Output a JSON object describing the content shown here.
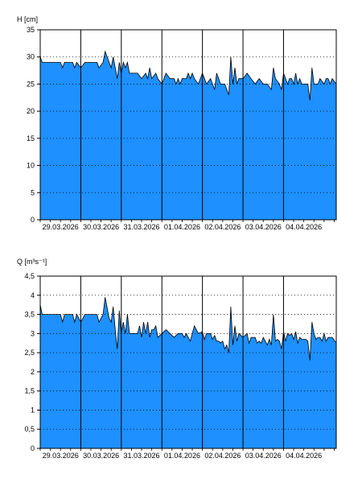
{
  "chart_data": [
    {
      "type": "area",
      "ylabel": "H [cm]",
      "ylim": [
        0,
        35
      ],
      "yticks": [
        "0",
        "5",
        "10",
        "15",
        "20",
        "25",
        "30",
        "35"
      ],
      "xlim_days": [
        0,
        7.3
      ],
      "x_tick_labels": [
        "29.03.2026",
        "30.03.2026",
        "31.03.2026",
        "01.04.2026",
        "02.04.2026",
        "03.04.2026",
        "04.04.2026"
      ],
      "grid": true,
      "fill_color": "#1e90ff",
      "points": [
        [
          0,
          30
        ],
        [
          0.05,
          29
        ],
        [
          0.3,
          29
        ],
        [
          0.5,
          29
        ],
        [
          0.55,
          28
        ],
        [
          0.6,
          29
        ],
        [
          0.8,
          29
        ],
        [
          0.85,
          28
        ],
        [
          0.9,
          29
        ],
        [
          1.0,
          28
        ],
        [
          1.1,
          29
        ],
        [
          1.3,
          29
        ],
        [
          1.4,
          29
        ],
        [
          1.45,
          28
        ],
        [
          1.55,
          29
        ],
        [
          1.6,
          31
        ],
        [
          1.7,
          29
        ],
        [
          1.75,
          28
        ],
        [
          1.8,
          30
        ],
        [
          1.85,
          28
        ],
        [
          1.9,
          26
        ],
        [
          1.95,
          29
        ],
        [
          2.0,
          27
        ],
        [
          2.05,
          29
        ],
        [
          2.1,
          28
        ],
        [
          2.15,
          29
        ],
        [
          2.2,
          27
        ],
        [
          2.4,
          27
        ],
        [
          2.5,
          26
        ],
        [
          2.6,
          27
        ],
        [
          2.65,
          26
        ],
        [
          2.7,
          28
        ],
        [
          2.75,
          26
        ],
        [
          2.85,
          27
        ],
        [
          2.9,
          26
        ],
        [
          3.0,
          25
        ],
        [
          3.1,
          27
        ],
        [
          3.2,
          26
        ],
        [
          3.3,
          26
        ],
        [
          3.35,
          25
        ],
        [
          3.4,
          26
        ],
        [
          3.45,
          25
        ],
        [
          3.5,
          26
        ],
        [
          3.6,
          26
        ],
        [
          3.65,
          27
        ],
        [
          3.7,
          26
        ],
        [
          3.75,
          27
        ],
        [
          3.8,
          26
        ],
        [
          3.9,
          25
        ],
        [
          4.0,
          27
        ],
        [
          4.05,
          26
        ],
        [
          4.1,
          25
        ],
        [
          4.2,
          26
        ],
        [
          4.25,
          25
        ],
        [
          4.3,
          24
        ],
        [
          4.35,
          27
        ],
        [
          4.4,
          26
        ],
        [
          4.45,
          25
        ],
        [
          4.5,
          25
        ],
        [
          4.55,
          25
        ],
        [
          4.6,
          24
        ],
        [
          4.65,
          23
        ],
        [
          4.7,
          30
        ],
        [
          4.75,
          25
        ],
        [
          4.8,
          28
        ],
        [
          4.85,
          25
        ],
        [
          4.9,
          26
        ],
        [
          5.0,
          26
        ],
        [
          5.1,
          27
        ],
        [
          5.2,
          26
        ],
        [
          5.3,
          25
        ],
        [
          5.4,
          26
        ],
        [
          5.5,
          25
        ],
        [
          5.6,
          25
        ],
        [
          5.7,
          24
        ],
        [
          5.75,
          28
        ],
        [
          5.8,
          26
        ],
        [
          5.9,
          25
        ],
        [
          5.95,
          24
        ],
        [
          6.0,
          27
        ],
        [
          6.1,
          25
        ],
        [
          6.15,
          26
        ],
        [
          6.2,
          26
        ],
        [
          6.25,
          25
        ],
        [
          6.3,
          27
        ],
        [
          6.35,
          25
        ],
        [
          6.4,
          26
        ],
        [
          6.45,
          25
        ],
        [
          6.6,
          25
        ],
        [
          6.65,
          22
        ],
        [
          6.7,
          28
        ],
        [
          6.75,
          25
        ],
        [
          6.85,
          25
        ],
        [
          6.9,
          26
        ],
        [
          7.0,
          25
        ],
        [
          7.05,
          26
        ],
        [
          7.1,
          26
        ],
        [
          7.15,
          25
        ],
        [
          7.2,
          26
        ],
        [
          7.3,
          25
        ]
      ]
    },
    {
      "type": "area",
      "ylabel": "Q [m³s⁻¹]",
      "ylim": [
        0,
        4.5
      ],
      "yticks": [
        "0",
        "0,5",
        "1",
        "1,5",
        "2",
        "2,5",
        "3",
        "3,5",
        "4",
        "4,5"
      ],
      "xlim_days": [
        0,
        7.3
      ],
      "x_tick_labels": [
        "29.03.2026",
        "30.03.2026",
        "31.03.2026",
        "01.04.2026",
        "02.04.2026",
        "03.04.2026",
        "04.04.2026"
      ],
      "grid": true,
      "fill_color": "#1e90ff",
      "points": [
        [
          0,
          3.75
        ],
        [
          0.05,
          3.5
        ],
        [
          0.3,
          3.5
        ],
        [
          0.5,
          3.5
        ],
        [
          0.55,
          3.3
        ],
        [
          0.6,
          3.5
        ],
        [
          0.8,
          3.5
        ],
        [
          0.85,
          3.3
        ],
        [
          0.9,
          3.5
        ],
        [
          1.0,
          3.3
        ],
        [
          1.1,
          3.5
        ],
        [
          1.3,
          3.5
        ],
        [
          1.4,
          3.5
        ],
        [
          1.45,
          3.3
        ],
        [
          1.55,
          3.5
        ],
        [
          1.6,
          3.95
        ],
        [
          1.7,
          3.4
        ],
        [
          1.75,
          3.3
        ],
        [
          1.8,
          3.7
        ],
        [
          1.85,
          3.1
        ],
        [
          1.9,
          2.6
        ],
        [
          1.95,
          3.6
        ],
        [
          2.0,
          3.0
        ],
        [
          2.05,
          3.3
        ],
        [
          2.1,
          3.0
        ],
        [
          2.15,
          3.5
        ],
        [
          2.2,
          3.0
        ],
        [
          2.3,
          3.0
        ],
        [
          2.4,
          3.0
        ],
        [
          2.45,
          3.2
        ],
        [
          2.5,
          2.9
        ],
        [
          2.55,
          3.3
        ],
        [
          2.6,
          3.0
        ],
        [
          2.65,
          3.3
        ],
        [
          2.7,
          2.9
        ],
        [
          2.75,
          3.1
        ],
        [
          2.8,
          3.1
        ],
        [
          2.85,
          3.2
        ],
        [
          2.9,
          2.9
        ],
        [
          3.0,
          3.0
        ],
        [
          3.1,
          3.1
        ],
        [
          3.2,
          3.0
        ],
        [
          3.3,
          2.9
        ],
        [
          3.4,
          3.0
        ],
        [
          3.5,
          3.0
        ],
        [
          3.55,
          2.9
        ],
        [
          3.6,
          3.0
        ],
        [
          3.7,
          2.8
        ],
        [
          3.75,
          3.0
        ],
        [
          3.8,
          3.2
        ],
        [
          3.9,
          3.0
        ],
        [
          4.0,
          3.05
        ],
        [
          4.05,
          2.85
        ],
        [
          4.1,
          3.0
        ],
        [
          4.2,
          3.0
        ],
        [
          4.25,
          2.85
        ],
        [
          4.3,
          2.95
        ],
        [
          4.35,
          2.8
        ],
        [
          4.4,
          2.8
        ],
        [
          4.45,
          2.75
        ],
        [
          4.5,
          2.8
        ],
        [
          4.55,
          2.6
        ],
        [
          4.6,
          2.7
        ],
        [
          4.65,
          2.5
        ],
        [
          4.7,
          3.7
        ],
        [
          4.75,
          2.7
        ],
        [
          4.8,
          3.2
        ],
        [
          4.85,
          2.8
        ],
        [
          4.9,
          3.0
        ],
        [
          5.0,
          2.9
        ],
        [
          5.1,
          3.0
        ],
        [
          5.15,
          2.75
        ],
        [
          5.2,
          2.9
        ],
        [
          5.3,
          2.9
        ],
        [
          5.35,
          2.75
        ],
        [
          5.4,
          2.8
        ],
        [
          5.45,
          2.75
        ],
        [
          5.5,
          2.9
        ],
        [
          5.6,
          2.7
        ],
        [
          5.65,
          2.85
        ],
        [
          5.7,
          2.7
        ],
        [
          5.75,
          3.5
        ],
        [
          5.8,
          2.8
        ],
        [
          5.85,
          2.85
        ],
        [
          5.9,
          2.8
        ],
        [
          5.95,
          2.6
        ],
        [
          6.0,
          3.05
        ],
        [
          6.05,
          2.8
        ],
        [
          6.1,
          3.0
        ],
        [
          6.15,
          2.95
        ],
        [
          6.2,
          3.0
        ],
        [
          6.25,
          2.85
        ],
        [
          6.3,
          3.05
        ],
        [
          6.35,
          2.75
        ],
        [
          6.4,
          2.9
        ],
        [
          6.45,
          2.85
        ],
        [
          6.55,
          2.85
        ],
        [
          6.6,
          2.8
        ],
        [
          6.65,
          2.3
        ],
        [
          6.7,
          3.3
        ],
        [
          6.75,
          3.0
        ],
        [
          6.8,
          2.85
        ],
        [
          6.85,
          2.9
        ],
        [
          6.9,
          2.9
        ],
        [
          6.95,
          2.8
        ],
        [
          7.0,
          3.0
        ],
        [
          7.05,
          2.8
        ],
        [
          7.1,
          2.9
        ],
        [
          7.2,
          2.9
        ],
        [
          7.3,
          2.75
        ]
      ]
    }
  ]
}
